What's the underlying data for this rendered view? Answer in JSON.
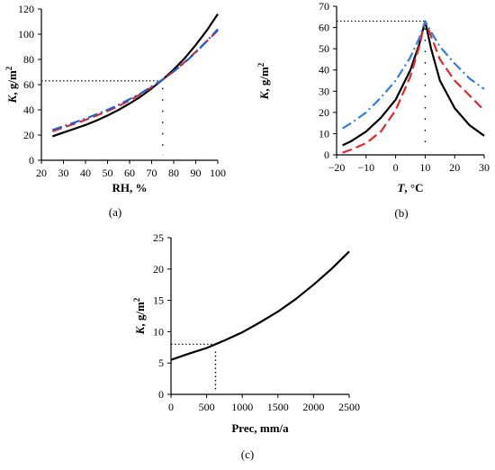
{
  "colors": {
    "black": "#000000",
    "red": "#e3262b",
    "blue": "#1f5fd6",
    "lightblue": "#2f7fe0"
  },
  "chart_data": [
    {
      "type": "line",
      "caption": "(a)",
      "xlabel_main": "RH",
      "xlabel_unit": ", %",
      "ylabel_main": "K",
      "ylabel_unit": ", g/m",
      "ylabel_sup": "2",
      "xlim": [
        20,
        100
      ],
      "ylim": [
        0,
        120
      ],
      "xticks": [
        20,
        30,
        40,
        50,
        60,
        70,
        80,
        90,
        100
      ],
      "yticks": [
        0,
        20,
        40,
        60,
        80,
        100,
        120
      ],
      "series": [
        {
          "color": "#000000",
          "style": "solid",
          "x": [
            25,
            30,
            35,
            40,
            45,
            50,
            55,
            60,
            65,
            70,
            75,
            80,
            85,
            90,
            95,
            100
          ],
          "y": [
            19,
            22,
            25,
            28,
            31.5,
            35.5,
            40,
            45,
            50.5,
            57,
            64,
            72,
            81,
            91.5,
            103,
            116
          ]
        },
        {
          "color": "#e3262b",
          "style": "dashed",
          "x": [
            25,
            30,
            35,
            40,
            45,
            50,
            55,
            60,
            65,
            70,
            75,
            80,
            85,
            90,
            95,
            100
          ],
          "y": [
            23,
            26,
            29,
            32,
            35.5,
            39,
            43,
            47.5,
            52.5,
            58,
            64,
            70.5,
            78,
            86,
            94.5,
            103
          ]
        },
        {
          "color": "#1f5fd6",
          "style": "dashdot",
          "x": [
            25,
            30,
            35,
            40,
            45,
            50,
            55,
            60,
            65,
            70,
            75,
            80,
            85,
            90,
            95,
            100
          ],
          "y": [
            24,
            27,
            30,
            33,
            36.5,
            40,
            44,
            48.5,
            53,
            58.5,
            64,
            70.5,
            77.5,
            85.5,
            94.5,
            104
          ]
        }
      ],
      "ref_x": 75,
      "ref_y": 63
    },
    {
      "type": "line",
      "caption": "(b)",
      "xlabel_main": "T",
      "xlabel_unit": ",  °C",
      "ylabel_main": "K",
      "ylabel_unit": ",  g/m",
      "ylabel_sup": "2",
      "xlim": [
        -20,
        30
      ],
      "ylim": [
        0,
        70
      ],
      "xticks": [
        -20,
        -10,
        0,
        10,
        20,
        30
      ],
      "yticks": [
        0,
        10,
        20,
        30,
        40,
        50,
        60,
        70
      ],
      "series": [
        {
          "color": "#000000",
          "style": "solid",
          "x": [
            -18,
            -15,
            -10,
            -5,
            0,
            5,
            8,
            10,
            12,
            15,
            20,
            25,
            30
          ],
          "y": [
            4.5,
            6.5,
            11,
            17.5,
            26,
            40,
            52,
            63,
            50,
            35,
            22,
            14,
            9
          ]
        },
        {
          "color": "#e3262b",
          "style": "dashed",
          "x": [
            -18,
            -15,
            -10,
            -5,
            0,
            5,
            8,
            10,
            12,
            15,
            20,
            25,
            30
          ],
          "y": [
            1,
            2.5,
            5.5,
            11,
            21,
            37,
            51,
            63,
            56,
            45,
            35,
            28,
            21
          ]
        },
        {
          "color": "#2f7fe0",
          "style": "dashdot",
          "x": [
            -18,
            -15,
            -10,
            -5,
            0,
            5,
            8,
            10,
            12,
            15,
            20,
            25,
            30
          ],
          "y": [
            12.5,
            15,
            20,
            27,
            35,
            46,
            55,
            63,
            58,
            51,
            43,
            36,
            31
          ]
        }
      ],
      "ref_x": 10,
      "ref_y": 63
    },
    {
      "type": "line",
      "caption": "(c)",
      "xlabel_main": "Prec, mm/a",
      "ylabel_main": "K",
      "ylabel_unit": ",  g/m",
      "ylabel_sup": "2",
      "xlim": [
        0,
        2500
      ],
      "ylim": [
        0,
        25
      ],
      "xticks": [
        0,
        500,
        1000,
        1500,
        2000,
        2500
      ],
      "yticks": [
        0,
        5,
        10,
        15,
        20,
        25
      ],
      "series": [
        {
          "color": "#000000",
          "style": "solid",
          "x": [
            0,
            250,
            500,
            625,
            750,
            1000,
            1250,
            1500,
            1750,
            2000,
            2250,
            2500
          ],
          "y": [
            5.5,
            6.5,
            7.4,
            8.0,
            8.6,
            9.9,
            11.5,
            13.2,
            15.2,
            17.5,
            20,
            22.8
          ]
        }
      ],
      "ref_x": 625,
      "ref_y": 8
    }
  ]
}
